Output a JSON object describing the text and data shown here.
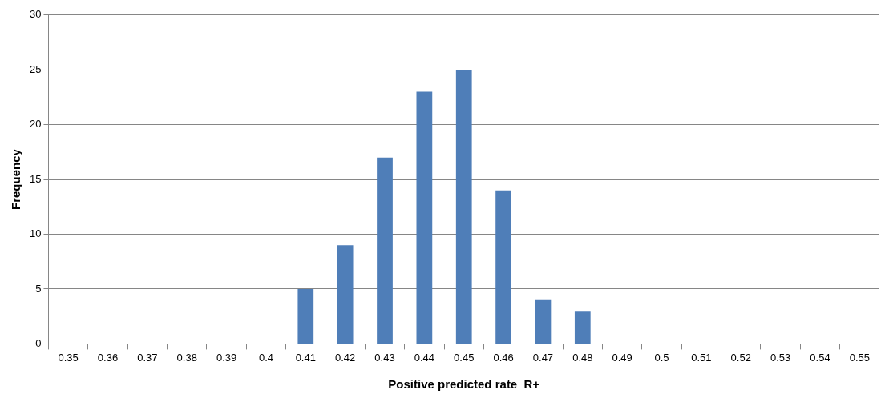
{
  "chart_data": {
    "type": "bar",
    "xlabel": "Positive predicted rate  R+",
    "ylabel": "Frequency",
    "categories": [
      "0.35",
      "0.36",
      "0.37",
      "0.38",
      "0.39",
      "0.4",
      "0.41",
      "0.42",
      "0.43",
      "0.44",
      "0.45",
      "0.46",
      "0.47",
      "0.48",
      "0.49",
      "0.5",
      "0.51",
      "0.52",
      "0.53",
      "0.54",
      "0.55"
    ],
    "values": [
      0,
      0,
      0,
      0,
      0,
      0,
      5,
      9,
      17,
      23,
      25,
      14,
      4,
      3,
      0,
      0,
      0,
      0,
      0,
      0,
      0
    ],
    "color": "#4f7eb8",
    "ylim": [
      0,
      30
    ],
    "yticks": [
      0,
      5,
      10,
      15,
      20,
      25,
      30
    ],
    "grid": "y",
    "legend": false
  }
}
